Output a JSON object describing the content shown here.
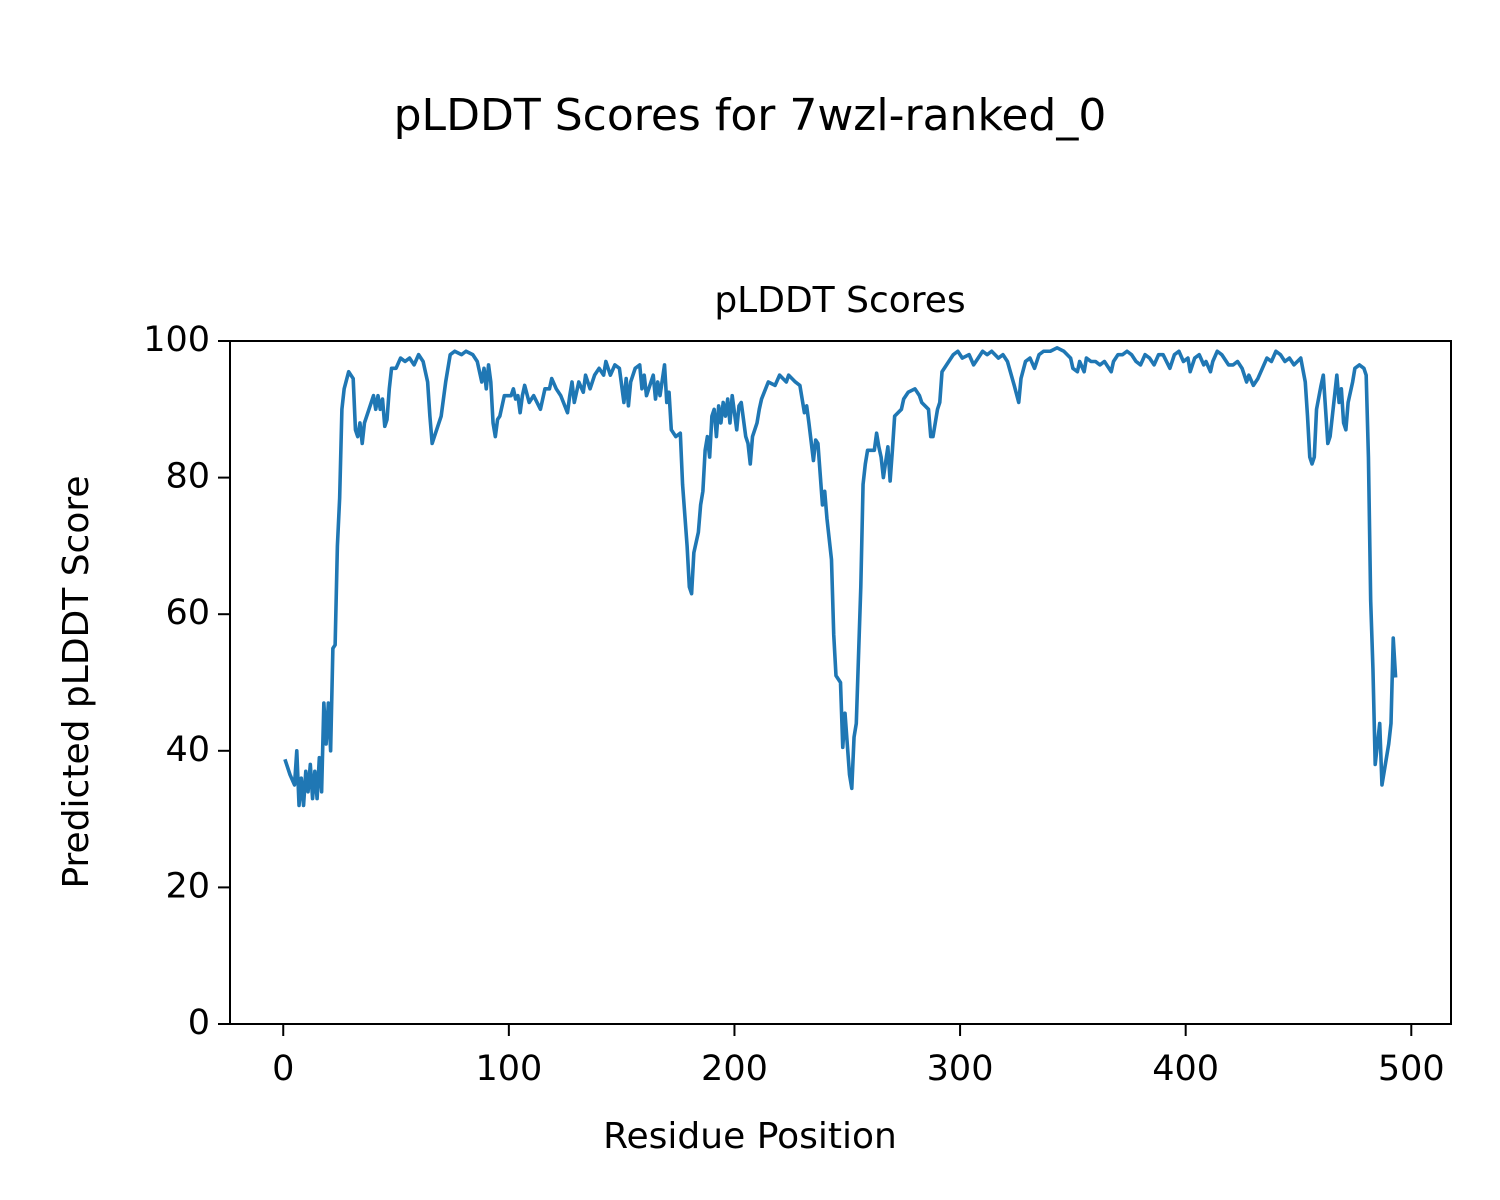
{
  "chart_data": {
    "type": "line",
    "suptitle": "pLDDT Scores for 7wzl-ranked_0",
    "title": "pLDDT Scores",
    "xlabel": "Residue Position",
    "ylabel": "Predicted pLDDT Score",
    "xlim": [
      -23.6,
      517.6
    ],
    "ylim": [
      0,
      100
    ],
    "xticks": [
      0,
      100,
      200,
      300,
      400,
      500
    ],
    "yticks": [
      0,
      20,
      40,
      60,
      80,
      100
    ],
    "grid": false,
    "series": [
      {
        "color": "#1f77b4",
        "x": [
          1,
          3,
          5,
          6,
          7,
          8,
          9,
          10,
          11,
          12,
          13,
          14,
          15,
          16,
          17,
          18,
          19,
          20,
          21,
          22,
          23,
          24,
          25,
          26,
          27,
          29,
          31,
          32,
          33,
          34,
          35,
          36,
          38,
          40,
          41,
          42,
          43,
          44,
          45,
          46,
          47,
          48,
          50,
          52,
          54,
          56,
          58,
          60,
          62,
          64,
          65,
          66,
          67,
          69,
          70,
          72,
          74,
          76,
          79,
          81,
          84,
          86,
          88,
          89,
          90,
          91,
          92,
          93,
          94,
          95,
          96,
          98,
          101,
          102,
          103,
          104,
          105,
          106,
          107,
          109,
          111,
          114,
          116,
          118,
          119,
          121,
          123,
          126,
          127,
          128,
          129,
          131,
          133,
          134,
          136,
          138,
          140,
          142,
          143,
          145,
          147,
          149,
          151,
          152,
          153,
          154,
          156,
          158,
          159,
          160,
          161,
          164,
          165,
          166,
          167,
          169,
          170,
          171,
          172,
          174,
          176,
          177,
          179,
          180,
          181,
          182,
          184,
          185,
          186,
          187,
          188,
          189,
          190,
          191,
          192,
          193,
          194,
          195,
          196,
          197,
          198,
          199,
          201,
          202,
          203,
          205,
          206,
          207,
          208,
          210,
          211,
          212,
          215,
          218,
          220,
          223,
          224,
          227,
          229,
          231,
          232,
          233,
          235,
          236,
          237,
          239,
          240,
          241,
          243,
          244,
          245,
          247,
          248,
          249,
          251,
          252,
          253,
          254,
          256,
          257,
          258,
          259,
          262,
          263,
          264,
          265,
          266,
          268,
          269,
          270,
          271,
          274,
          275,
          277,
          280,
          282,
          283,
          286,
          287,
          288,
          290,
          291,
          292,
          294,
          297,
          299,
          301,
          304,
          306,
          308,
          310,
          312,
          314,
          317,
          319,
          321,
          324,
          326,
          327,
          329,
          331,
          333,
          335,
          337,
          340,
          343,
          346,
          349,
          350,
          352,
          353,
          355,
          356,
          358,
          360,
          362,
          364,
          367,
          368,
          370,
          372,
          374,
          376,
          378,
          380,
          382,
          384,
          386,
          388,
          390,
          393,
          395,
          397,
          399,
          401,
          402,
          404,
          406,
          408,
          409,
          411,
          412,
          414,
          416,
          419,
          421,
          423,
          425,
          427,
          428,
          430,
          432,
          434,
          436,
          438,
          440,
          442,
          444,
          446,
          448,
          451,
          453,
          454,
          455,
          456,
          457,
          458,
          460,
          461,
          462,
          463,
          464,
          466,
          467,
          468,
          469,
          470,
          471,
          472,
          474,
          475,
          477,
          479,
          480,
          481,
          482,
          483,
          484,
          486,
          487,
          488,
          490,
          491,
          492,
          493
        ],
        "values": [
          38.5,
          36.5,
          35,
          40,
          32,
          36,
          32,
          37,
          34,
          38,
          33,
          37,
          33,
          39,
          34,
          47,
          41,
          47,
          40,
          55,
          55.5,
          70,
          77,
          90,
          93,
          95.5,
          94.5,
          87,
          86,
          88,
          85,
          88,
          90,
          92,
          90,
          92,
          90,
          91.5,
          87.5,
          88.5,
          93,
          96,
          96,
          97.5,
          97,
          97.5,
          96.5,
          98,
          97,
          94,
          89,
          85,
          86,
          88,
          89,
          94,
          98,
          98.5,
          98,
          98.5,
          98,
          97,
          94,
          96,
          93,
          96.5,
          94,
          88,
          86,
          88.5,
          89,
          92,
          92,
          93,
          91.5,
          92,
          89.5,
          92,
          93.5,
          91,
          92,
          90,
          93,
          93,
          94.5,
          93,
          92,
          89.5,
          92,
          94,
          91,
          94,
          92.5,
          95,
          93,
          95,
          96,
          95,
          97,
          95,
          96.5,
          96,
          91,
          94.5,
          90.5,
          94,
          96,
          96.5,
          93,
          95,
          92,
          95,
          91.5,
          94,
          92,
          96.5,
          91,
          92.5,
          87,
          86,
          86.5,
          79,
          70,
          64,
          63,
          69,
          72,
          76,
          78,
          84,
          86,
          83,
          89,
          90,
          86,
          90.5,
          88,
          91,
          89,
          91.5,
          88,
          92,
          87,
          90.5,
          91,
          86,
          85,
          82,
          86,
          88,
          90,
          91.5,
          94,
          93.5,
          95,
          94,
          95,
          94,
          93.5,
          89.5,
          90.5,
          88,
          82.5,
          85.5,
          85,
          76,
          78,
          74,
          68,
          57,
          51,
          50,
          40.5,
          45.5,
          36.5,
          34.5,
          42,
          44,
          64,
          79,
          82,
          84,
          84,
          86.5,
          84.5,
          83,
          80,
          84.5,
          79.5,
          84,
          89,
          90,
          91.5,
          92.5,
          93,
          92,
          91,
          90,
          86,
          86,
          90,
          91,
          95.5,
          96.5,
          98,
          98.5,
          97.5,
          98,
          96.5,
          97.5,
          98.5,
          98,
          98.5,
          97.5,
          98,
          97,
          93.5,
          91,
          94.5,
          97,
          97.5,
          96,
          98,
          98.5,
          98.5,
          99,
          98.5,
          97.5,
          96,
          95.5,
          97,
          95.5,
          97.5,
          97,
          97,
          96.5,
          97,
          95.5,
          97,
          98,
          98,
          98.5,
          98,
          97,
          96.5,
          98,
          97.5,
          96.5,
          98,
          98,
          96,
          98,
          98.5,
          97,
          97.5,
          95.5,
          97.5,
          98,
          96.5,
          97,
          95.5,
          97,
          98.5,
          98,
          96.5,
          96.5,
          97,
          96,
          94,
          95,
          93.5,
          94.5,
          96,
          97.5,
          97,
          98.5,
          98,
          97,
          97.5,
          96.5,
          97.5,
          94,
          89,
          83,
          82,
          83,
          90,
          93.5,
          95,
          90,
          85,
          86,
          92,
          95,
          91,
          93,
          88,
          87,
          91,
          94,
          96,
          96.5,
          96,
          95,
          83,
          62,
          52,
          38,
          44,
          35,
          37,
          41,
          44,
          56.5,
          51
        ]
      }
    ]
  }
}
